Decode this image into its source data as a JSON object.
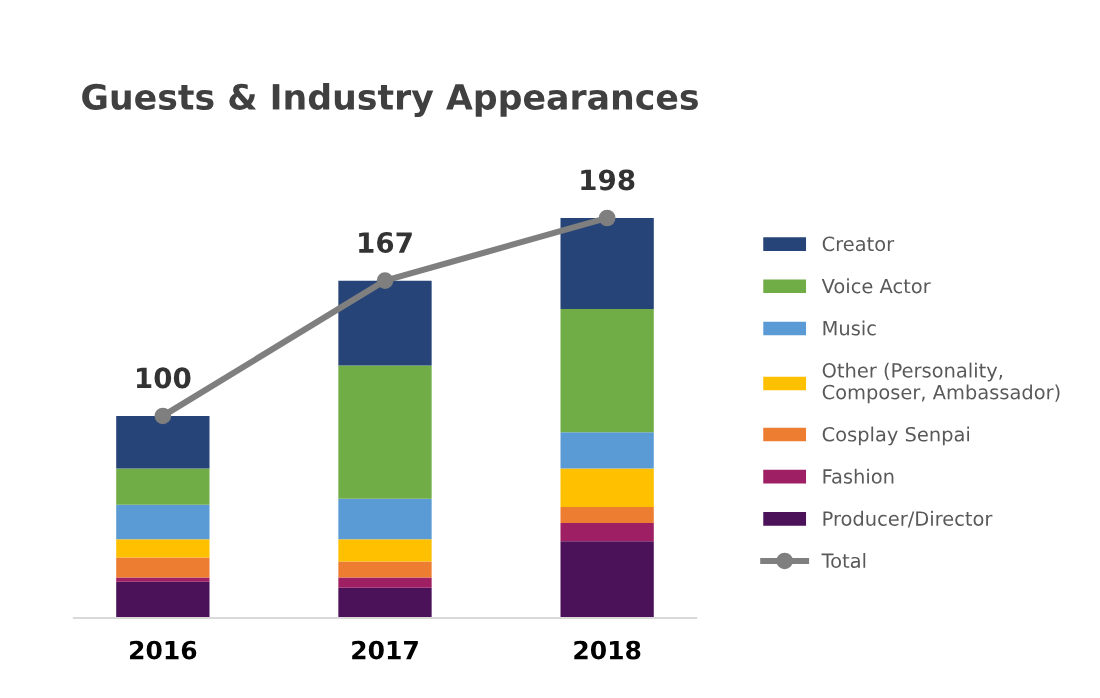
{
  "chart_data": {
    "type": "bar",
    "title": "Guests & Industry Appearances",
    "stacked": true,
    "categories": [
      "2016",
      "2017",
      "2018"
    ],
    "series": [
      {
        "name": "Producer/Director",
        "color": "#4b1259",
        "values": [
          18,
          15,
          38
        ]
      },
      {
        "name": "Fashion",
        "color": "#9e1f63",
        "values": [
          2,
          5,
          9
        ]
      },
      {
        "name": "Cosplay Senpai",
        "color": "#ed7d31",
        "values": [
          10,
          8,
          8
        ]
      },
      {
        "name": "Other (Personality, Composer, Ambassador)",
        "color": "#ffc000",
        "values": [
          9,
          11,
          19
        ]
      },
      {
        "name": "Music",
        "color": "#5b9bd5",
        "values": [
          17,
          20,
          18
        ]
      },
      {
        "name": "Voice Actor",
        "color": "#70ad47",
        "values": [
          18,
          66,
          61
        ]
      },
      {
        "name": "Creator",
        "color": "#264478",
        "values": [
          26,
          42,
          45
        ]
      },
      {
        "name": "Total",
        "type": "line",
        "color": "#7f7f7f",
        "values": [
          100,
          167,
          198
        ],
        "value_labels": [
          "100",
          "167",
          "198"
        ],
        "marker": "circle"
      }
    ],
    "tick_labels": "x",
    "legend": "right"
  }
}
